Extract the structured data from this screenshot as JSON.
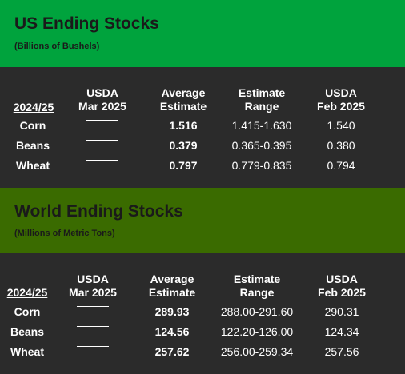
{
  "us": {
    "title": "US Ending Stocks",
    "subtitle": "(Billions of Bushels)",
    "headers": {
      "year": "2024/25",
      "col1_l1": "USDA",
      "col1_l2": "Mar 2025",
      "col2_l1": "Average",
      "col2_l2": "Estimate",
      "col3_l1": "Estimate",
      "col3_l2": "Range",
      "col4_l1": "USDA",
      "col4_l2": "Feb 2025"
    },
    "rows": [
      {
        "label": "Corn",
        "average": "1.516",
        "range": "1.415-1.630",
        "feb": "1.540"
      },
      {
        "label": "Beans",
        "average": "0.379",
        "range": "0.365-0.395",
        "feb": "0.380"
      },
      {
        "label": "Wheat",
        "average": "0.797",
        "range": "0.779-0.835",
        "feb": "0.794"
      }
    ]
  },
  "world": {
    "title": "World Ending Stocks",
    "subtitle": "(Millions of Metric Tons)",
    "headers": {
      "year": "2024/25",
      "col1_l1": "USDA",
      "col1_l2": "Mar 2025",
      "col2_l1": "Average",
      "col2_l2": "Estimate",
      "col3_l1": "Estimate",
      "col3_l2": "Range",
      "col4_l1": "USDA",
      "col4_l2": "Feb 2025"
    },
    "rows": [
      {
        "label": "Corn",
        "average": "289.93",
        "range": "288.00-291.60",
        "feb": "290.31"
      },
      {
        "label": "Beans",
        "average": "124.56",
        "range": "122.20-126.00",
        "feb": "124.34"
      },
      {
        "label": "Wheat",
        "average": "257.62",
        "range": "256.00-259.34",
        "feb": "257.56"
      }
    ]
  },
  "colors": {
    "us_banner": "#00a33d",
    "world_banner": "#3a6b00",
    "background": "#2b2b2b"
  }
}
